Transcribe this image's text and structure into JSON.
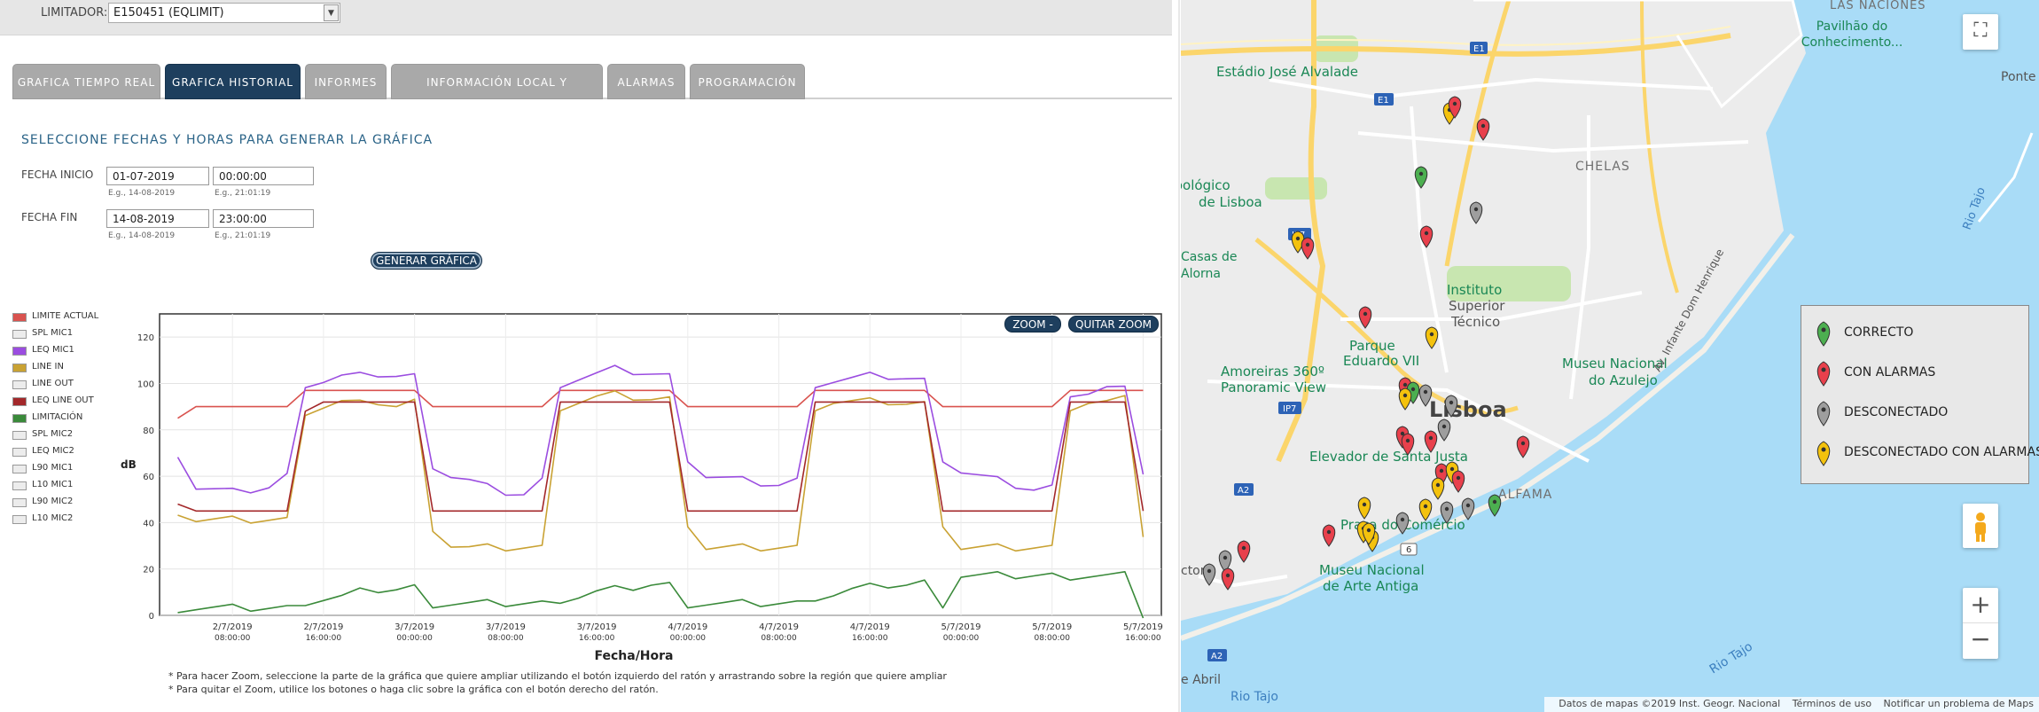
{
  "limitador": {
    "label": "LIMITADOR:",
    "selected": "E150451 (EQLIMIT)"
  },
  "tabs": [
    {
      "label": "GRAFICA TIEMPO REAL"
    },
    {
      "label": "GRAFICA HISTORIAL",
      "active": true
    },
    {
      "label": "INFORMES"
    },
    {
      "label": "INFORMACIÓN LOCAL Y LIMITADOR"
    },
    {
      "label": "ALARMAS"
    },
    {
      "label": "PROGRAMACIÓN"
    }
  ],
  "form": {
    "title": "SELECCIONE FECHAS Y HORAS PARA GENERAR LA GRÁFICA",
    "start_label": "FECHA INICIO",
    "start_date": "01-07-2019",
    "start_time": "00:00:00",
    "end_label": "FECHA FIN",
    "end_date": "14-08-2019",
    "end_time": "23:00:00",
    "date_hint": "E.g., 14-08-2019",
    "time_hint": "E.g., 21:01:19",
    "generate_label": "GENERAR GRÁFICA"
  },
  "legend": [
    {
      "label": "LIMITE ACTUAL",
      "color": "#d9534f"
    },
    {
      "label": "SPL MIC1",
      "color": "#ececec"
    },
    {
      "label": "LEQ MIC1",
      "color": "#9b4de0"
    },
    {
      "label": "LINE IN",
      "color": "#c9a233"
    },
    {
      "label": "LINE OUT",
      "color": "#ececec"
    },
    {
      "label": "LEQ LINE OUT",
      "color": "#a3282a"
    },
    {
      "label": "LIMITACIÓN",
      "color": "#3a8a3a"
    },
    {
      "label": "SPL MIC2",
      "color": "#ececec"
    },
    {
      "label": "LEQ MIC2",
      "color": "#ececec"
    },
    {
      "label": "L90 MIC1",
      "color": "#ececec"
    },
    {
      "label": "L10 MIC1",
      "color": "#ececec"
    },
    {
      "label": "L90 MIC2",
      "color": "#ececec"
    },
    {
      "label": "L10 MIC2",
      "color": "#ececec"
    }
  ],
  "zoom": {
    "zoom_label": "ZOOM -",
    "reset_label": "QUITAR ZOOM"
  },
  "chart_data": {
    "type": "line",
    "xlabel": "Fecha/Hora",
    "ylabel": "dB",
    "ylim": [
      0,
      130
    ],
    "yticks": [
      0,
      20,
      40,
      60,
      80,
      100,
      120
    ],
    "xticks": [
      {
        "l1": "2/7/2019",
        "l2": "08:00:00"
      },
      {
        "l1": "2/7/2019",
        "l2": "16:00:00"
      },
      {
        "l1": "3/7/2019",
        "l2": "00:00:00"
      },
      {
        "l1": "3/7/2019",
        "l2": "08:00:00"
      },
      {
        "l1": "3/7/2019",
        "l2": "16:00:00"
      },
      {
        "l1": "4/7/2019",
        "l2": "00:00:00"
      },
      {
        "l1": "4/7/2019",
        "l2": "08:00:00"
      },
      {
        "l1": "4/7/2019",
        "l2": "16:00:00"
      },
      {
        "l1": "5/7/2019",
        "l2": "00:00:00"
      },
      {
        "l1": "5/7/2019",
        "l2": "08:00:00"
      },
      {
        "l1": "5/7/2019",
        "l2": "16:00:00"
      }
    ],
    "x_hours": [
      2,
      4,
      6,
      8,
      10,
      12,
      14,
      16,
      18,
      20,
      22,
      24,
      26,
      28,
      30,
      32,
      34,
      36,
      38,
      40,
      42,
      44,
      46,
      48,
      50,
      52,
      54,
      56,
      58,
      60,
      62,
      64,
      66,
      68,
      70,
      72,
      74,
      76,
      78,
      80,
      82,
      84,
      86,
      88,
      90,
      92,
      94,
      96,
      98,
      100,
      102,
      104,
      106,
      108
    ],
    "series": [
      {
        "name": "LIMITE ACTUAL",
        "color": "#d9534f",
        "values": [
          85,
          90,
          90,
          90,
          90,
          90,
          90,
          97,
          97,
          97,
          97,
          97,
          97,
          97,
          90,
          90,
          90,
          90,
          90,
          90,
          90,
          97,
          97,
          97,
          97,
          97,
          97,
          97,
          90,
          90,
          90,
          90,
          90,
          90,
          90,
          97,
          97,
          97,
          97,
          97,
          97,
          97,
          90,
          90,
          90,
          90,
          90,
          90,
          90,
          97,
          97,
          97,
          97,
          97
        ]
      },
      {
        "name": "LEQ MIC1",
        "color": "#9b4de0",
        "values": [
          70,
          55,
          54,
          53,
          54,
          55,
          60,
          100,
          101,
          103,
          103,
          104,
          103,
          103,
          65,
          60,
          58,
          55,
          53,
          52,
          58,
          100,
          102,
          104,
          106,
          105,
          104,
          103,
          68,
          60,
          59,
          58,
          57,
          56,
          58,
          100,
          101,
          102,
          103,
          103,
          102,
          101,
          68,
          62,
          60,
          58,
          56,
          54,
          55,
          96,
          96,
          98,
          97,
          62
        ]
      },
      {
        "name": "LINE IN",
        "color": "#c9a233",
        "values": [
          45,
          41,
          41,
          41,
          41,
          41,
          41,
          88,
          90,
          92,
          91,
          92,
          90,
          92,
          38,
          30,
          29,
          29,
          29,
          29,
          29,
          90,
          92,
          94,
          95,
          94,
          93,
          93,
          40,
          29,
          29,
          29,
          29,
          29,
          29,
          90,
          92,
          92,
          92,
          92,
          91,
          91,
          40,
          29,
          29,
          29,
          29,
          29,
          29,
          90,
          92,
          92,
          93,
          35
        ]
      },
      {
        "name": "LEQ LINE OUT",
        "color": "#a3282a",
        "values": [
          48,
          45,
          45,
          45,
          45,
          45,
          45,
          88,
          92,
          92,
          92,
          92,
          92,
          92,
          45,
          45,
          45,
          45,
          45,
          45,
          45,
          92,
          92,
          92,
          92,
          92,
          92,
          92,
          45,
          45,
          45,
          45,
          45,
          45,
          45,
          92,
          92,
          92,
          92,
          92,
          92,
          92,
          45,
          45,
          45,
          45,
          45,
          45,
          45,
          92,
          92,
          92,
          92,
          45
        ]
      },
      {
        "name": "LIMITACIÓN",
        "color": "#3a8a3a",
        "values": [
          3,
          3,
          3,
          3,
          3,
          3,
          3,
          6,
          7,
          8,
          10,
          11,
          11,
          12,
          5,
          5,
          5,
          5,
          5,
          5,
          5,
          7,
          8,
          10,
          11,
          12,
          13,
          13,
          5,
          5,
          5,
          5,
          5,
          5,
          5,
          8,
          9,
          11,
          12,
          13,
          13,
          14,
          5,
          17,
          17,
          17,
          17,
          17,
          17,
          17,
          17,
          17,
          17,
          0
        ]
      }
    ]
  },
  "notes": [
    "* Para hacer Zoom, seleccione la parte de la gráfica que quiere ampliar utilizando el botón izquierdo del ratón y arrastrando sobre la región que quiere ampliar",
    "* Para quitar el Zoom, utilice los botones o haga clic sobre la gráfica con el botón derecho del ratón."
  ],
  "map": {
    "labels": {
      "las_naciones": "LAS NACIONES",
      "pavilhao": "Pavilhão do",
      "conhecimento": "Conhecimento...",
      "ponte_vasco": "Ponte Vasco",
      "estadio": "Estádio José Alvalade",
      "chelas": "CHELAS",
      "zoologico1": "Jardim Zoológico",
      "zoologico2": "de Lisboa",
      "instituto1": "Instituto",
      "instituto2": "Superior",
      "instituto3": "Técnico",
      "casas1": "Casas de",
      "casas2": "Alorna",
      "parque1": "Parque",
      "parque2": "Eduardo VII",
      "museu_azulejo1": "Museu Nacional",
      "museu_azulejo2": "do Azulejo",
      "amoreiras1": "Amoreiras 360º",
      "amoreiras2": "Panoramic View",
      "lisboa": "Lisboa",
      "elevador": "Elevador de Santa Justa",
      "alfama": "ALFAMA",
      "praca": "Praça do Comércio",
      "museu_arte1": "Museu Nacional",
      "museu_arte2": "de Arte Antiga",
      "abril": "e Abril",
      "rio1": "Rio Tajo",
      "rio2": "Rio Tajo",
      "rio3": "Rio Tajo",
      "av_infante": "Av. Infante Dom Henrique",
      "ip7": "IP7",
      "a2": "A2",
      "e1": "E1",
      "n6": "6",
      "victory": "ctory"
    },
    "legend": [
      {
        "label": "CORRECTO",
        "color": "#4caf50"
      },
      {
        "label": "CON ALARMAS",
        "color": "#e8404c"
      },
      {
        "label": "DESCONECTADO",
        "color": "#9e9e9e"
      },
      {
        "label": "DESCONECTADO CON ALARMAS",
        "color": "#f4c20d"
      }
    ],
    "footer": {
      "data": "Datos de mapas ©2019 Inst. Geogr. Nacional",
      "terms": "Términos de uso",
      "report": "Notificar un problema de Maps"
    }
  }
}
